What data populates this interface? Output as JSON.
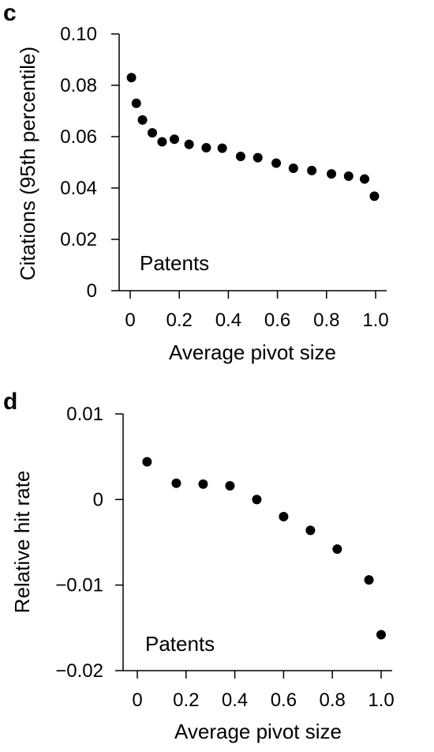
{
  "chart_data": [
    {
      "panel_label": "c",
      "type": "scatter",
      "xlabel": "Average pivot size",
      "ylabel": "Citations (95th percentile)",
      "annotation": "Patents",
      "xlim": [
        0,
        1.0
      ],
      "ylim": [
        0,
        0.1
      ],
      "x_ticks": [
        0,
        0.2,
        0.4,
        0.6,
        0.8,
        1.0
      ],
      "x_tick_labels": [
        "0",
        "0.2",
        "0.4",
        "0.6",
        "0.8",
        "1.0"
      ],
      "y_ticks": [
        0,
        0.02,
        0.04,
        0.06,
        0.08,
        0.1
      ],
      "y_tick_labels": [
        "0",
        "0.02",
        "0.04",
        "0.06",
        "0.08",
        "0.10"
      ],
      "points": [
        {
          "x": 0.005,
          "y": 0.083
        },
        {
          "x": 0.025,
          "y": 0.073
        },
        {
          "x": 0.05,
          "y": 0.0665
        },
        {
          "x": 0.09,
          "y": 0.0615
        },
        {
          "x": 0.13,
          "y": 0.058
        },
        {
          "x": 0.18,
          "y": 0.059
        },
        {
          "x": 0.24,
          "y": 0.057
        },
        {
          "x": 0.31,
          "y": 0.0557
        },
        {
          "x": 0.375,
          "y": 0.0555
        },
        {
          "x": 0.45,
          "y": 0.0523
        },
        {
          "x": 0.52,
          "y": 0.0518
        },
        {
          "x": 0.595,
          "y": 0.0497
        },
        {
          "x": 0.665,
          "y": 0.0477
        },
        {
          "x": 0.74,
          "y": 0.0468
        },
        {
          "x": 0.82,
          "y": 0.0455
        },
        {
          "x": 0.89,
          "y": 0.0446
        },
        {
          "x": 0.955,
          "y": 0.0435
        },
        {
          "x": 0.995,
          "y": 0.0368
        }
      ]
    },
    {
      "panel_label": "d",
      "type": "scatter",
      "xlabel": "Average pivot size",
      "ylabel": "Relative hit rate",
      "annotation": "Patents",
      "xlim": [
        0,
        1.0
      ],
      "ylim": [
        -0.02,
        0.01
      ],
      "x_ticks": [
        0,
        0.2,
        0.4,
        0.6,
        0.8,
        1.0
      ],
      "x_tick_labels": [
        "0",
        "0.2",
        "0.4",
        "0.6",
        "0.8",
        "1.0"
      ],
      "y_ticks": [
        -0.02,
        -0.01,
        0,
        0.01
      ],
      "y_tick_labels": [
        "−0.02",
        "−0.01",
        "0",
        "0.01"
      ],
      "points": [
        {
          "x": 0.04,
          "y": 0.0044
        },
        {
          "x": 0.16,
          "y": 0.0019
        },
        {
          "x": 0.27,
          "y": 0.0018
        },
        {
          "x": 0.38,
          "y": 0.0016
        },
        {
          "x": 0.49,
          "y": 0.0
        },
        {
          "x": 0.6,
          "y": -0.002
        },
        {
          "x": 0.71,
          "y": -0.0036
        },
        {
          "x": 0.82,
          "y": -0.0058
        },
        {
          "x": 0.95,
          "y": -0.0094
        },
        {
          "x": 1.0,
          "y": -0.0158
        }
      ]
    }
  ]
}
